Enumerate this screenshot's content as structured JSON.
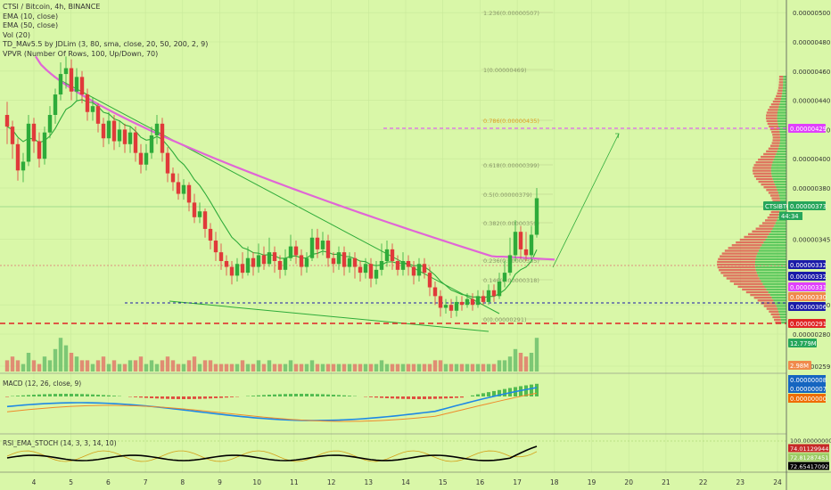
{
  "chart_data": {
    "type": "candlestick",
    "symbol": "CTSI / Bitcoin, 4h, BINANCE",
    "ticker": "CTSIBTC",
    "countdown": "44:34",
    "indicators": [
      "EMA (10, close)",
      "EMA (50, close)",
      "Vol (20)",
      "TD_MAv5.5 by JDLim (3, 80, sma, close, 20, 50, 200, 2, 9)",
      "VPVR (Number Of Rows, 100, Up/Down, 70)"
    ],
    "y_ticks": [
      "0.00000500",
      "0.00000480",
      "0.00000460",
      "0.00000440",
      "0.00000420",
      "0.00000400",
      "0.00000380",
      "0.00000345",
      "0.00000300",
      "0.00000280",
      "0.00000259"
    ],
    "x_ticks": [
      "4",
      "5",
      "6",
      "7",
      "8",
      "9",
      "10",
      "11",
      "12",
      "13",
      "14",
      "15",
      "16",
      "17",
      "18",
      "19",
      "20",
      "21",
      "22",
      "23",
      "24"
    ],
    "fib_levels": [
      {
        "label": "1.236(0.00000507)",
        "value": 507
      },
      {
        "label": "1(0.00000469)",
        "value": 469
      },
      {
        "label": "0.786(0.00000435)",
        "value": 435
      },
      {
        "label": "0.618(0.00000399)",
        "value": 399
      },
      {
        "label": "0.5(0.00000379)",
        "value": 379
      },
      {
        "label": "0.382(0.00000359)",
        "value": 359
      },
      {
        "label": "0.236(0.00000335)",
        "value": 335
      },
      {
        "label": "0.146(0.00000318)",
        "value": 318
      },
      {
        "label": "0(0.00000291)",
        "value": 291
      }
    ],
    "price_badges": [
      {
        "label": "0.00000429",
        "color": "#e040fb"
      },
      {
        "label": "CTSIBTC",
        "color": "#26a65b"
      },
      {
        "label": "0.00000373",
        "color": "#26a65b"
      },
      {
        "label": "0.00000332",
        "color": "#1a1aa8"
      },
      {
        "label": "0.00000332",
        "color": "#1a1aa8"
      },
      {
        "label": "0.00000331",
        "color": "#e040fb"
      },
      {
        "label": "0.00000330",
        "color": "#f08a4b"
      },
      {
        "label": "0.00000306",
        "color": "#1a1aa8"
      },
      {
        "label": "0.00000291",
        "color": "#e02424"
      },
      {
        "label": "12.779M",
        "color": "#26a65b"
      },
      {
        "label": "2.98M",
        "color": "#f08a4b"
      }
    ],
    "macd": {
      "label": "MACD (12, 26, close, 9)",
      "badges": [
        {
          "label": "0.00000008",
          "color": "#1565c0"
        },
        {
          "label": "0.00000007",
          "color": "#1565c0"
        },
        {
          "label": "0.00000000",
          "color": "#ef6c00"
        }
      ]
    },
    "rsi": {
      "label": "RSI_EMA_STOCH (14, 3, 3, 14, 10)",
      "badges": [
        {
          "label": "100.00000000",
          "color": "#d9f7a8"
        },
        {
          "label": "74.01129944",
          "color": "#c62828"
        },
        {
          "label": "72.81287451",
          "color": "#9ccc65"
        },
        {
          "label": "72.65417092",
          "color": "#000000"
        }
      ]
    },
    "candles": [
      [
        430,
        422,
        439,
        410
      ],
      [
        422,
        410,
        426,
        400
      ],
      [
        410,
        392,
        414,
        385
      ],
      [
        392,
        398,
        404,
        384
      ],
      [
        398,
        424,
        430,
        395
      ],
      [
        424,
        412,
        428,
        404
      ],
      [
        412,
        400,
        418,
        394
      ],
      [
        400,
        418,
        422,
        396
      ],
      [
        418,
        430,
        436,
        414
      ],
      [
        430,
        444,
        448,
        424
      ],
      [
        444,
        458,
        466,
        440
      ],
      [
        458,
        462,
        470,
        448
      ],
      [
        462,
        446,
        468,
        440
      ],
      [
        446,
        456,
        462,
        440
      ],
      [
        456,
        444,
        460,
        438
      ],
      [
        444,
        432,
        448,
        426
      ],
      [
        432,
        436,
        442,
        426
      ],
      [
        436,
        424,
        438,
        418
      ],
      [
        424,
        414,
        428,
        408
      ],
      [
        414,
        426,
        432,
        410
      ],
      [
        426,
        412,
        430,
        406
      ],
      [
        412,
        420,
        426,
        408
      ],
      [
        420,
        410,
        424,
        404
      ],
      [
        410,
        418,
        422,
        404
      ],
      [
        418,
        404,
        422,
        398
      ],
      [
        404,
        396,
        410,
        390
      ],
      [
        396,
        404,
        410,
        392
      ],
      [
        404,
        416,
        422,
        400
      ],
      [
        416,
        424,
        430,
        410
      ],
      [
        424,
        404,
        428,
        398
      ],
      [
        404,
        390,
        408,
        384
      ],
      [
        390,
        384,
        394,
        378
      ],
      [
        384,
        376,
        390,
        372
      ],
      [
        376,
        382,
        386,
        372
      ],
      [
        382,
        370,
        384,
        364
      ],
      [
        370,
        360,
        376,
        356
      ],
      [
        360,
        364,
        370,
        356
      ],
      [
        364,
        352,
        366,
        346
      ],
      [
        352,
        344,
        356,
        338
      ],
      [
        344,
        336,
        350,
        330
      ],
      [
        336,
        330,
        342,
        324
      ],
      [
        330,
        326,
        334,
        320
      ],
      [
        326,
        320,
        330,
        314
      ],
      [
        320,
        328,
        332,
        316
      ],
      [
        328,
        322,
        336,
        318
      ],
      [
        322,
        332,
        340,
        320
      ],
      [
        332,
        326,
        336,
        320
      ],
      [
        326,
        334,
        342,
        322
      ],
      [
        334,
        328,
        340,
        324
      ],
      [
        328,
        336,
        346,
        326
      ],
      [
        336,
        330,
        340,
        322
      ],
      [
        330,
        324,
        334,
        318
      ],
      [
        324,
        332,
        338,
        320
      ],
      [
        332,
        340,
        348,
        330
      ],
      [
        340,
        334,
        344,
        328
      ],
      [
        334,
        326,
        338,
        320
      ],
      [
        326,
        332,
        336,
        322
      ],
      [
        332,
        346,
        352,
        330
      ],
      [
        346,
        338,
        352,
        332
      ],
      [
        338,
        344,
        350,
        334
      ],
      [
        344,
        332,
        348,
        326
      ],
      [
        332,
        328,
        336,
        322
      ],
      [
        328,
        336,
        340,
        324
      ],
      [
        336,
        326,
        340,
        320
      ],
      [
        326,
        332,
        336,
        322
      ],
      [
        332,
        326,
        336,
        318
      ],
      [
        326,
        322,
        330,
        316
      ],
      [
        322,
        328,
        332,
        318
      ],
      [
        328,
        318,
        332,
        312
      ],
      [
        318,
        324,
        330,
        314
      ],
      [
        324,
        330,
        342,
        320
      ],
      [
        330,
        338,
        344,
        326
      ],
      [
        338,
        330,
        342,
        324
      ],
      [
        330,
        324,
        334,
        320
      ],
      [
        324,
        330,
        336,
        320
      ],
      [
        330,
        326,
        334,
        320
      ],
      [
        326,
        320,
        330,
        314
      ],
      [
        320,
        328,
        332,
        316
      ],
      [
        328,
        322,
        332,
        318
      ],
      [
        322,
        312,
        326,
        306
      ],
      [
        312,
        306,
        316,
        300
      ],
      [
        306,
        298,
        310,
        292
      ],
      [
        298,
        300,
        304,
        294
      ],
      [
        300,
        296,
        304,
        291
      ],
      [
        296,
        302,
        306,
        292
      ],
      [
        302,
        300,
        306,
        296
      ],
      [
        300,
        304,
        308,
        298
      ],
      [
        304,
        300,
        308,
        296
      ],
      [
        300,
        306,
        310,
        298
      ],
      [
        306,
        302,
        310,
        300
      ],
      [
        302,
        310,
        314,
        300
      ],
      [
        310,
        306,
        314,
        302
      ],
      [
        306,
        316,
        322,
        304
      ],
      [
        316,
        322,
        330,
        312
      ],
      [
        322,
        334,
        346,
        320
      ],
      [
        334,
        350,
        358,
        330
      ],
      [
        350,
        338,
        354,
        332
      ],
      [
        338,
        334,
        350,
        330
      ],
      [
        334,
        348,
        354,
        330
      ],
      [
        348,
        373,
        380,
        346
      ]
    ],
    "volume": [
      3,
      4,
      3,
      2,
      5,
      3,
      2,
      4,
      3,
      6,
      9,
      7,
      5,
      4,
      3,
      3,
      2,
      3,
      4,
      2,
      3,
      2,
      2,
      3,
      3,
      4,
      2,
      3,
      2,
      3,
      4,
      3,
      2,
      2,
      3,
      4,
      2,
      3,
      3,
      2,
      2,
      2,
      2,
      2,
      3,
      2,
      2,
      3,
      2,
      3,
      2,
      2,
      2,
      3,
      2,
      2,
      2,
      3,
      2,
      2,
      2,
      2,
      2,
      2,
      2,
      2,
      2,
      2,
      2,
      2,
      3,
      2,
      2,
      2,
      2,
      2,
      2,
      2,
      2,
      2,
      3,
      3,
      2,
      2,
      2,
      2,
      2,
      2,
      2,
      2,
      2,
      2,
      3,
      3,
      4,
      6,
      5,
      4,
      5,
      9
    ]
  }
}
